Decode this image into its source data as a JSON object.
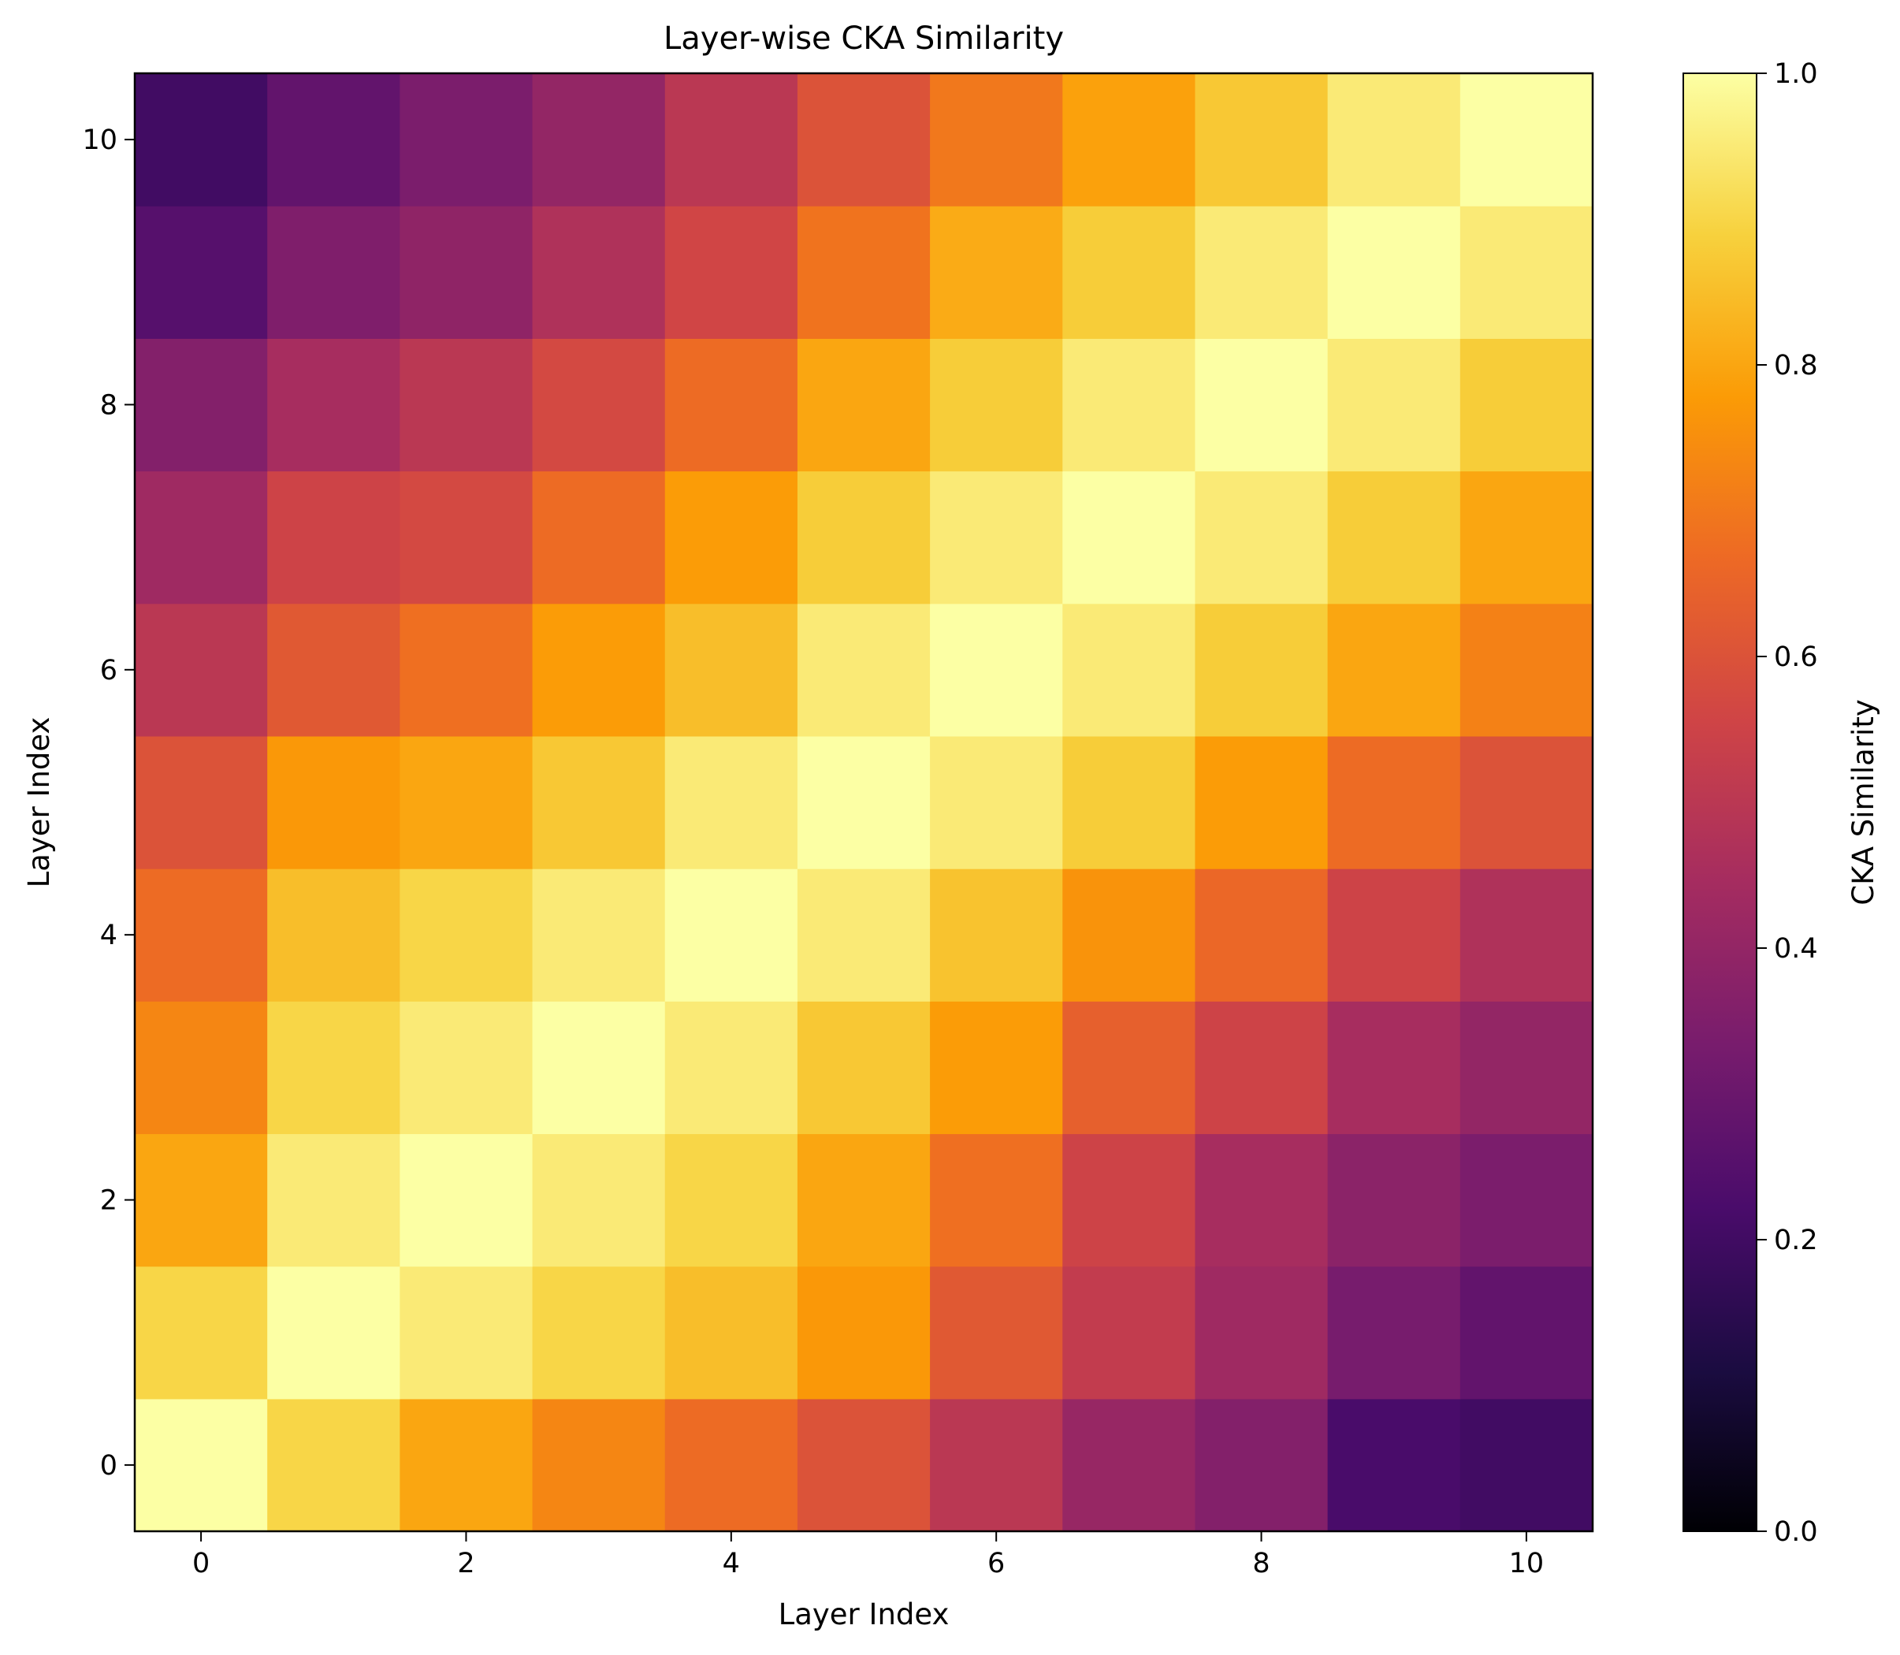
{
  "chart_data": {
    "type": "heatmap",
    "title": "Layer-wise CKA Similarity",
    "xlabel": "Layer Index",
    "ylabel": "Layer Index",
    "colorbar_label": "CKA Similarity",
    "colormap": "inferno",
    "colormap_stops": [
      "#000004",
      "#1b0c41",
      "#4a0c6b",
      "#781c6d",
      "#a52c60",
      "#cf4446",
      "#ed6925",
      "#fb9b06",
      "#f7d13d",
      "#fcffa4"
    ],
    "vmin": 0.0,
    "vmax": 1.0,
    "x_categories": [
      0,
      1,
      2,
      3,
      4,
      5,
      6,
      7,
      8,
      9,
      10
    ],
    "y_categories": [
      0,
      1,
      2,
      3,
      4,
      5,
      6,
      7,
      8,
      9,
      10
    ],
    "x_ticks": [
      "0",
      "2",
      "4",
      "6",
      "8",
      "10"
    ],
    "y_ticks": [
      "0",
      "2",
      "4",
      "6",
      "8",
      "10"
    ],
    "colorbar_ticks": [
      "0.0",
      "0.2",
      "0.4",
      "0.6",
      "0.8",
      "1.0"
    ],
    "values": [
      [
        1.0,
        0.9,
        0.8,
        0.73,
        0.67,
        0.6,
        0.5,
        0.41,
        0.36,
        0.22,
        0.2
      ],
      [
        0.9,
        1.0,
        0.95,
        0.9,
        0.85,
        0.77,
        0.62,
        0.52,
        0.43,
        0.33,
        0.28
      ],
      [
        0.8,
        0.95,
        1.0,
        0.95,
        0.9,
        0.8,
        0.68,
        0.55,
        0.45,
        0.38,
        0.34
      ],
      [
        0.73,
        0.9,
        0.95,
        1.0,
        0.95,
        0.87,
        0.78,
        0.64,
        0.55,
        0.45,
        0.4
      ],
      [
        0.67,
        0.85,
        0.9,
        0.95,
        1.0,
        0.95,
        0.86,
        0.76,
        0.66,
        0.55,
        0.47
      ],
      [
        0.6,
        0.77,
        0.8,
        0.87,
        0.95,
        1.0,
        0.95,
        0.88,
        0.78,
        0.67,
        0.6
      ],
      [
        0.5,
        0.62,
        0.68,
        0.78,
        0.85,
        0.95,
        1.0,
        0.95,
        0.88,
        0.8,
        0.72
      ],
      [
        0.43,
        0.55,
        0.57,
        0.67,
        0.78,
        0.88,
        0.95,
        1.0,
        0.95,
        0.88,
        0.8
      ],
      [
        0.36,
        0.45,
        0.5,
        0.57,
        0.67,
        0.8,
        0.88,
        0.95,
        1.0,
        0.95,
        0.88
      ],
      [
        0.25,
        0.35,
        0.39,
        0.47,
        0.56,
        0.69,
        0.81,
        0.88,
        0.95,
        1.0,
        0.95
      ],
      [
        0.2,
        0.28,
        0.34,
        0.4,
        0.5,
        0.6,
        0.7,
        0.79,
        0.87,
        0.95,
        1.0
      ]
    ]
  }
}
